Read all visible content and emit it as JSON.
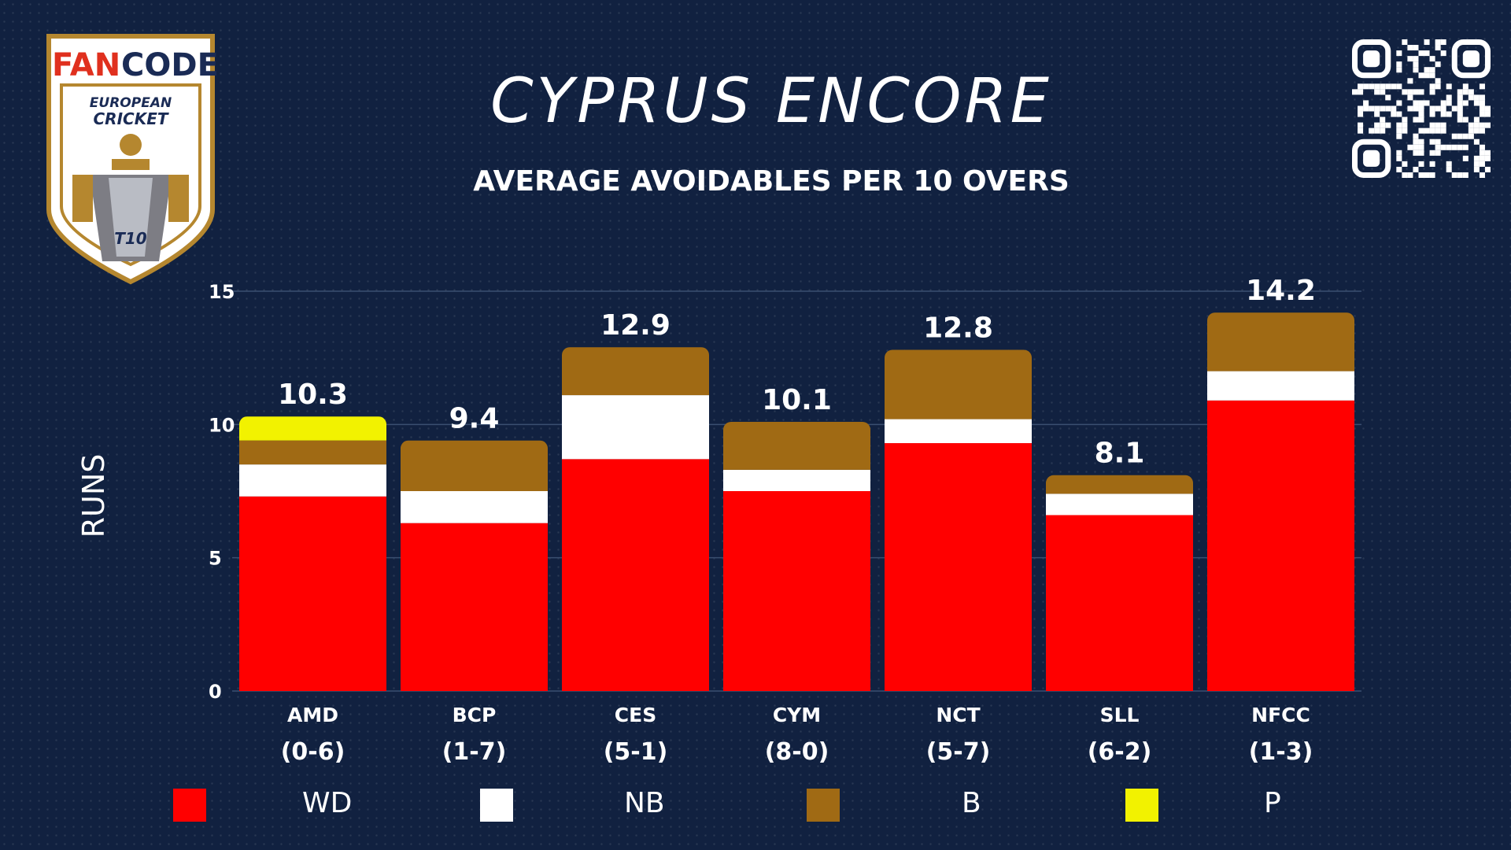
{
  "logo": {
    "brand_fan": "FAN",
    "brand_code": "CODE",
    "line1": "EUROPEAN",
    "line2": "CRICKET",
    "badge": "T10"
  },
  "title": "CYPRUS ENCORE",
  "subtitle": "AVERAGE AVOIDABLES PER 10 OVERS",
  "colors": {
    "WD": "#ff0000",
    "NB": "#ffffff",
    "B": "#a06a14",
    "P": "#f2f200",
    "grid": "#3a4f70",
    "background": "#112140"
  },
  "chart_data": {
    "type": "bar",
    "stacked": true,
    "categories": [
      "AMD",
      "BCP",
      "CES",
      "CYM",
      "NCT",
      "SLL",
      "NFCC"
    ],
    "records": [
      "(0-6)",
      "(1-7)",
      "(5-1)",
      "(8-0)",
      "(5-7)",
      "(6-2)",
      "(1-3)"
    ],
    "totals": [
      "10.3",
      "9.4",
      "12.9",
      "10.1",
      "12.8",
      "8.1",
      "14.2"
    ],
    "ylabel": "RUNS",
    "xlabel": "",
    "ylim": [
      0,
      15
    ],
    "yticks": [
      "0",
      "5",
      "10",
      "15"
    ],
    "ytick_values": [
      0,
      5,
      10,
      15
    ],
    "grid": true,
    "legend_position": "bottom",
    "series": [
      {
        "name": "WD",
        "values": [
          7.3,
          6.3,
          8.7,
          7.5,
          9.3,
          6.6,
          10.9
        ]
      },
      {
        "name": "NB",
        "values": [
          1.2,
          1.2,
          2.4,
          0.8,
          0.9,
          0.8,
          1.1
        ]
      },
      {
        "name": "B",
        "values": [
          0.9,
          1.9,
          1.8,
          1.8,
          2.6,
          0.7,
          2.2
        ]
      },
      {
        "name": "P",
        "values": [
          0.9,
          0,
          0,
          0,
          0,
          0,
          0
        ]
      }
    ]
  }
}
